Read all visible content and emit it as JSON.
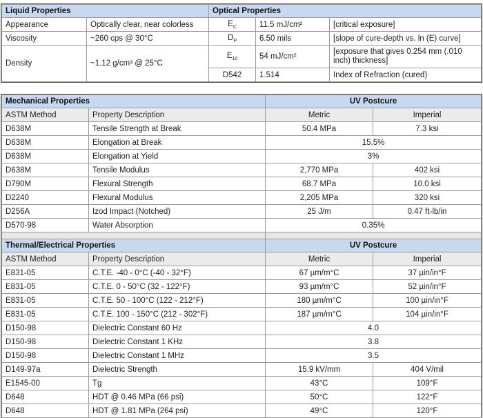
{
  "liquid": {
    "title": "Liquid Properties",
    "rows": [
      {
        "label": "Appearance",
        "value": "Optically clear, near colorless"
      },
      {
        "label": "Viscosity",
        "value": "~260 cps @ 30°C"
      },
      {
        "label": "Density",
        "value": "~1.12 g/cm³  @ 25°C"
      }
    ]
  },
  "optical": {
    "title": "Optical Properties",
    "rows": [
      {
        "sym": "E",
        "sub": "C",
        "value": "11.5 mJ/cm²",
        "desc": "[critical exposure]"
      },
      {
        "sym": "D",
        "sub": "P",
        "value": "6.50 mils",
        "desc": "[slope of cure-depth vs. ln (E) curve]"
      },
      {
        "sym": "E",
        "sub": "10",
        "value": "54 mJ/cm²",
        "desc": "[exposure that gives 0.254 mm (.010 inch) thickness]"
      },
      {
        "sym": "D542",
        "sub": "",
        "value": "1.514",
        "desc": "Index of Refraction (cured)"
      }
    ]
  },
  "mechanical": {
    "title": "Mechanical Properties",
    "postcure": "UV Postcure",
    "columns": [
      "ASTM Method",
      "Property Description",
      "Metric",
      "Imperial"
    ],
    "rows": [
      {
        "method": "D638M",
        "desc": "Tensile Strength at Break",
        "metric": "50.4 MPa",
        "imperial": "7.3 ksi"
      },
      {
        "method": "D638M",
        "desc": "Elongation at Break",
        "both": "15.5%"
      },
      {
        "method": "D638M",
        "desc": "Elongation at Yield",
        "both": "3%"
      },
      {
        "method": "D638M",
        "desc": "Tensile Modulus",
        "metric": "2,770 MPa",
        "imperial": "402 ksi"
      },
      {
        "method": "D790M",
        "desc": "Flexural Strength",
        "metric": "68.7 MPa",
        "imperial": "10.0 ksi"
      },
      {
        "method": "D2240",
        "desc": "Flexural Modulus",
        "metric": "2,205 MPa",
        "imperial": "320 ksi"
      },
      {
        "method": "D256A",
        "desc": "Izod Impact (Notched)",
        "metric": "25 J/m",
        "imperial": "0.47 ft-lb/in"
      },
      {
        "method": "D570-98",
        "desc": "Water Absorption",
        "both": "0.35%"
      }
    ]
  },
  "thermal": {
    "title": "Thermal/Electrical Properties",
    "postcure": "UV Postcure",
    "columns": [
      "ASTM Method",
      "Property Description",
      "Metric",
      "Imperial"
    ],
    "rows": [
      {
        "method": "E831-05",
        "desc": "C.T.E. -40 - 0°C (-40 - 32°F)",
        "metric": "67 µm/m°C",
        "imperial": "37 µin/in°F"
      },
      {
        "method": "E831-05",
        "desc": "C.T.E. 0 - 50°C (32 - 122°F)",
        "metric": "93 µm/m°C",
        "imperial": "52 µin/in°F"
      },
      {
        "method": "E831-05",
        "desc": "C.T.E. 50 - 100°C (122 - 212°F)",
        "metric": "180 µm/m°C",
        "imperial": "100 µin/in°F"
      },
      {
        "method": "E831-05",
        "desc": "C.T.E. 100 - 150°C (212 - 302°F)",
        "metric": "187 µm/m°C",
        "imperial": "104 µin/in°F"
      },
      {
        "method": "D150-98",
        "desc": "Dielectric Constant 60 Hz",
        "both": "4.0"
      },
      {
        "method": "D150-98",
        "desc": "Dielectric Constant 1 KHz",
        "both": "3.8"
      },
      {
        "method": "D150-98",
        "desc": "Dielectric Constant 1 MHz",
        "both": "3.5"
      },
      {
        "method": "D149-97a",
        "desc": "Dielectric Strength",
        "metric": "15.9 kV/mm",
        "imperial": "404 V/mil"
      },
      {
        "method": "E1545-00",
        "desc": "Tg",
        "metric": "43°C",
        "imperial": "109°F"
      },
      {
        "method": "D648",
        "desc": "HDT @ 0.46 MPa (66 psi)",
        "metric": "50°C",
        "imperial": "122°F"
      },
      {
        "method": "D648",
        "desc": "HDT @ 1.81 MPa (264 psi)",
        "metric": "49°C",
        "imperial": "120°F"
      }
    ]
  },
  "colors": {
    "header": "#c6d9f0",
    "subheader": "#ebebeb",
    "border": "#9a9a9a"
  }
}
